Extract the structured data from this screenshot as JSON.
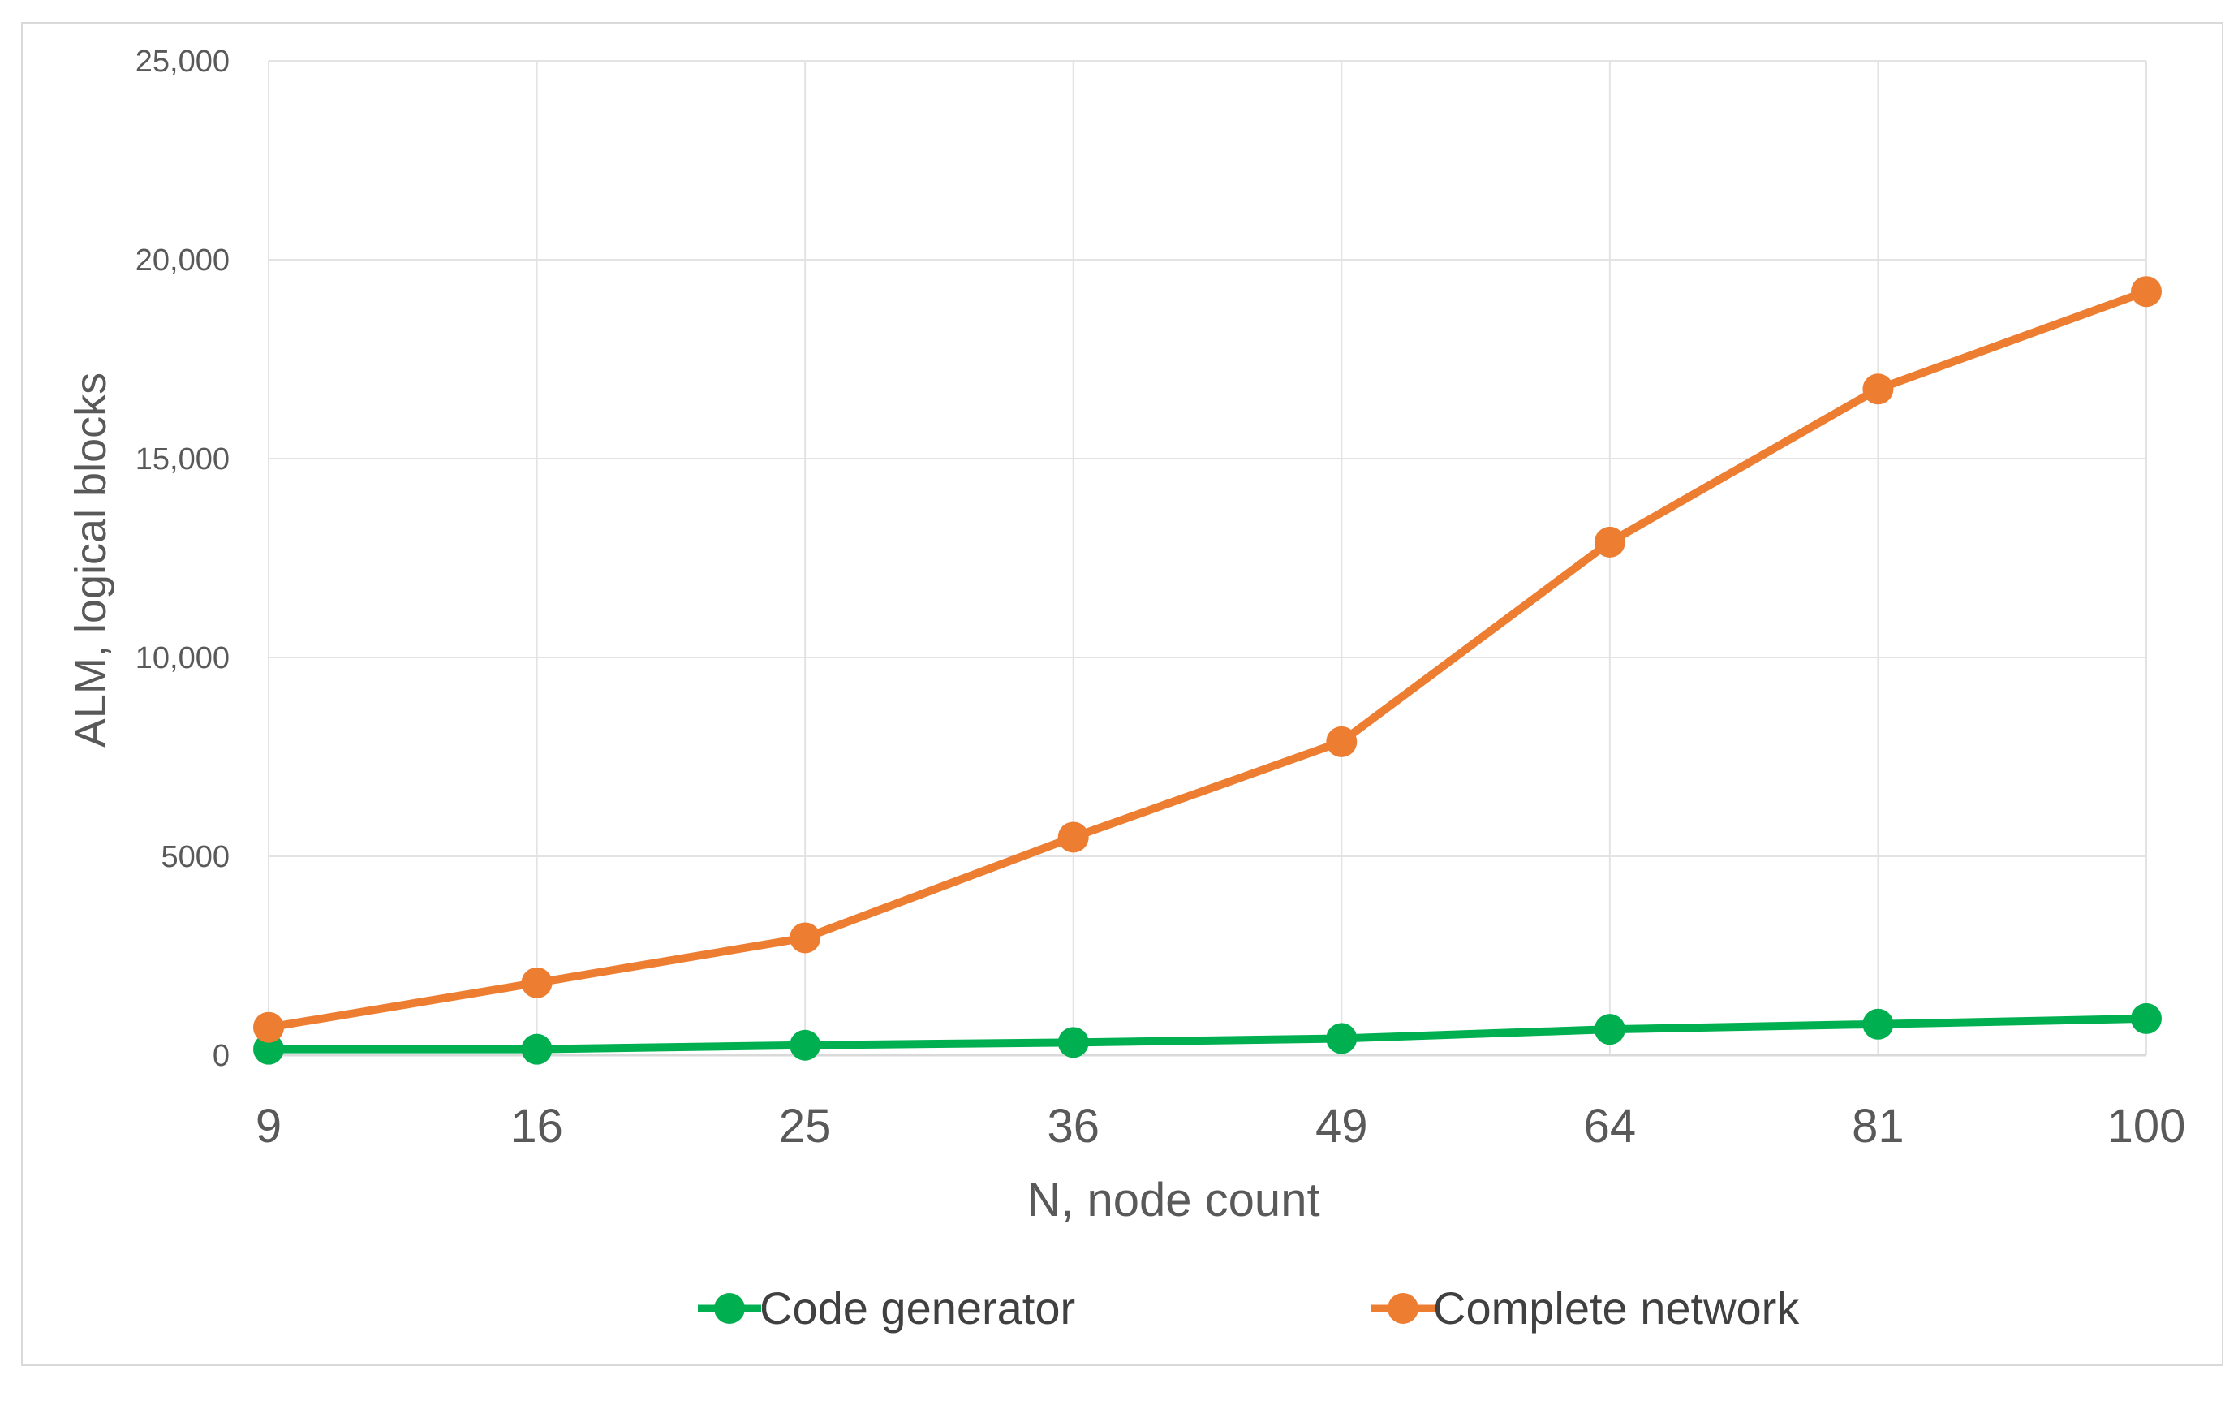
{
  "chart_data": {
    "type": "line",
    "title": "",
    "xlabel": "N, node count",
    "ylabel": "ALM, logical blocks",
    "categories": [
      "9",
      "16",
      "25",
      "36",
      "49",
      "64",
      "81",
      "100"
    ],
    "ylim": [
      0,
      25000
    ],
    "yticks": [
      0,
      5000,
      10000,
      15000,
      20000,
      25000
    ],
    "ytick_labels": [
      "0",
      "5000",
      "10,000",
      "15,000",
      "20,000",
      "25,000"
    ],
    "grid": true,
    "legend_position": "bottom",
    "series": [
      {
        "name": "Code generator",
        "color": "#00b050",
        "values": [
          150,
          150,
          250,
          320,
          420,
          650,
          780,
          920
        ]
      },
      {
        "name": "Complete network",
        "color": "#ed7d31",
        "values": [
          700,
          1820,
          2950,
          5480,
          7880,
          12900,
          16750,
          19200
        ]
      }
    ]
  }
}
